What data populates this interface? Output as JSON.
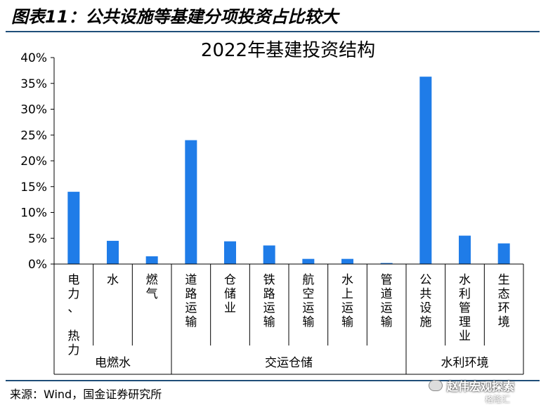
{
  "figure": {
    "title": "图表11：公共设施等基建分项投资占比较大",
    "source": "来源：Wind，国金证券研究所",
    "watermark": "赵伟宏观探索",
    "watermark2": "格隆汇"
  },
  "chart_data": {
    "type": "bar",
    "title": "2022年基建投资结构",
    "categories": [
      "电力、热力",
      "水",
      "燃气",
      "道路运输",
      "仓储业",
      "铁路运输",
      "航空运输",
      "水上运输",
      "管道运输",
      "公共设施",
      "水利管理业",
      "生态环境"
    ],
    "category_label_lines": [
      [
        "电",
        "力",
        "、",
        " ",
        "热",
        "力"
      ],
      [
        "水"
      ],
      [
        "燃",
        "气"
      ],
      [
        "道",
        "路",
        "运",
        "输"
      ],
      [
        "仓",
        "储",
        "业"
      ],
      [
        "铁",
        "路",
        "运",
        "输"
      ],
      [
        "航",
        "空",
        "运",
        "输"
      ],
      [
        "水",
        "上",
        "运",
        "输"
      ],
      [
        "管",
        "道",
        "运",
        "输"
      ],
      [
        "公",
        "共",
        "设",
        "施"
      ],
      [
        "水",
        "利",
        "管",
        "理",
        "业"
      ],
      [
        "生",
        "态",
        "环",
        "境"
      ]
    ],
    "values": [
      14.0,
      4.5,
      1.5,
      24.0,
      4.4,
      3.6,
      1.0,
      1.0,
      0.2,
      36.3,
      5.5,
      4.0
    ],
    "groups": [
      {
        "label": "电燃水",
        "start": 0,
        "end": 2
      },
      {
        "label": "交运仓储",
        "start": 3,
        "end": 8
      },
      {
        "label": "水利环境",
        "start": 9,
        "end": 11
      }
    ],
    "ylim": [
      0,
      40
    ],
    "yticks": [
      "0%",
      "5%",
      "10%",
      "15%",
      "20%",
      "25%",
      "30%",
      "35%",
      "40%"
    ],
    "unit": "%",
    "colors": {
      "bar": "#1f7ce8",
      "axis": "#000000"
    },
    "grid": false
  }
}
